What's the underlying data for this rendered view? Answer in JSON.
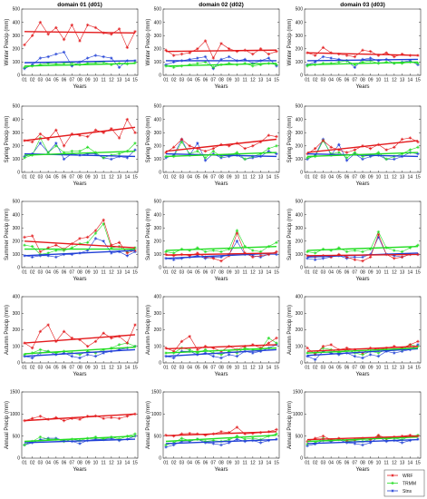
{
  "chart_data": {
    "type": "line",
    "columns": [
      "domain 01 (d01)",
      "domain 02 (d02)",
      "domain 03 (d03)"
    ],
    "rows": [
      {
        "ylabel": "Winter Precip (mm)",
        "ymax": 500,
        "yticks": [
          0,
          100,
          200,
          300,
          400,
          500
        ]
      },
      {
        "ylabel": "Spring Precip (mm)",
        "ymax": 500,
        "yticks": [
          0,
          100,
          200,
          300,
          400,
          500
        ]
      },
      {
        "ylabel": "Summer Precip (mm)",
        "ymax": 500,
        "yticks": [
          0,
          100,
          200,
          300,
          400,
          500
        ]
      },
      {
        "ylabel": "Autumn Precip (mm)",
        "ymax": 400,
        "yticks": [
          0,
          100,
          200,
          300,
          400
        ]
      },
      {
        "ylabel": "Annual Precip (mm)",
        "ymax": 1500,
        "yticks": [
          0,
          500,
          1000,
          1500
        ]
      }
    ],
    "xlabel": "Years",
    "x": [
      "01",
      "02",
      "03",
      "04",
      "05",
      "06",
      "07",
      "08",
      "09",
      "10",
      "11",
      "12",
      "13",
      "14",
      "15"
    ],
    "legend": [
      {
        "name": "WRF",
        "color": "#e31a1c",
        "marker": "*"
      },
      {
        "name": "TRMM",
        "color": "#22dd22",
        "marker": "*"
      },
      {
        "name": "Stns",
        "color": "#1f3fd6",
        "marker": "*"
      }
    ],
    "legend_position": "bottom-right",
    "panels": [
      {
        "row": 0,
        "col": 0,
        "WRF": [
          230,
          300,
          400,
          310,
          360,
          270,
          380,
          260,
          380,
          360,
          320,
          310,
          350,
          210,
          330
        ],
        "TRMM": [
          60,
          70,
          80,
          90,
          85,
          90,
          95,
          80,
          90,
          95,
          100,
          80,
          90,
          85,
          95
        ],
        "Stns": [
          50,
          80,
          130,
          140,
          160,
          175,
          70,
          100,
          130,
          150,
          140,
          130,
          60,
          110,
          110
        ],
        "trend": {
          "WRF": [
            330,
            320
          ],
          "TRMM": [
            70,
            90
          ],
          "Stns": [
            95,
            110
          ]
        }
      },
      {
        "row": 0,
        "col": 1,
        "WRF": [
          190,
          150,
          160,
          170,
          200,
          260,
          130,
          240,
          200,
          180,
          190,
          160,
          200,
          160,
          180
        ],
        "TRMM": [
          70,
          60,
          70,
          80,
          90,
          100,
          60,
          80,
          90,
          80,
          90,
          70,
          80,
          90,
          80
        ],
        "Stns": [
          80,
          100,
          110,
          120,
          130,
          140,
          50,
          120,
          140,
          110,
          120,
          90,
          110,
          130,
          70
        ],
        "trend": {
          "WRF": [
            180,
            190
          ],
          "TRMM": [
            70,
            90
          ],
          "Stns": [
            110,
            110
          ]
        }
      },
      {
        "row": 0,
        "col": 2,
        "WRF": [
          170,
          150,
          210,
          170,
          160,
          150,
          140,
          190,
          180,
          150,
          170,
          140,
          160,
          150,
          150
        ],
        "TRMM": [
          70,
          80,
          90,
          90,
          100,
          110,
          80,
          100,
          110,
          90,
          100,
          90,
          90,
          100,
          90
        ],
        "Stns": [
          80,
          100,
          140,
          130,
          120,
          110,
          60,
          120,
          130,
          110,
          120,
          90,
          100,
          110,
          80
        ],
        "trend": {
          "WRF": [
            170,
            150
          ],
          "TRMM": [
            80,
            100
          ],
          "Stns": [
            110,
            120
          ]
        }
      },
      {
        "row": 1,
        "col": 0,
        "WRF": [
          240,
          230,
          290,
          250,
          320,
          200,
          290,
          280,
          270,
          320,
          300,
          330,
          260,
          400,
          300
        ],
        "TRMM": [
          110,
          130,
          260,
          150,
          200,
          150,
          160,
          160,
          190,
          150,
          110,
          130,
          140,
          160,
          220
        ],
        "Stns": [
          120,
          140,
          220,
          150,
          220,
          100,
          140,
          130,
          140,
          140,
          110,
          100,
          120,
          110,
          170
        ],
        "trend": {
          "WRF": [
            240,
            340
          ],
          "TRMM": [
            130,
            160
          ],
          "Stns": [
            140,
            120
          ]
        }
      },
      {
        "row": 1,
        "col": 1,
        "WRF": [
          150,
          190,
          250,
          200,
          180,
          160,
          180,
          210,
          200,
          220,
          180,
          200,
          230,
          280,
          270
        ],
        "TRMM": [
          120,
          120,
          230,
          140,
          160,
          110,
          160,
          120,
          130,
          150,
          100,
          120,
          140,
          180,
          200
        ],
        "Stns": [
          110,
          130,
          250,
          130,
          220,
          90,
          140,
          110,
          120,
          130,
          100,
          110,
          120,
          160,
          140
        ],
        "trend": {
          "WRF": [
            160,
            250
          ],
          "TRMM": [
            120,
            150
          ],
          "Stns": [
            140,
            120
          ]
        }
      },
      {
        "row": 1,
        "col": 2,
        "WRF": [
          140,
          180,
          240,
          190,
          170,
          150,
          170,
          200,
          180,
          210,
          170,
          190,
          250,
          260,
          230
        ],
        "TRMM": [
          110,
          120,
          240,
          140,
          150,
          110,
          150,
          120,
          130,
          150,
          100,
          120,
          140,
          170,
          190
        ],
        "Stns": [
          100,
          130,
          250,
          130,
          210,
          90,
          140,
          100,
          120,
          130,
          100,
          100,
          120,
          150,
          140
        ],
        "trend": {
          "WRF": [
            150,
            240
          ],
          "TRMM": [
            120,
            150
          ],
          "Stns": [
            140,
            120
          ]
        }
      },
      {
        "row": 2,
        "col": 0,
        "WRF": [
          230,
          240,
          120,
          150,
          170,
          140,
          180,
          220,
          230,
          280,
          360,
          170,
          190,
          110,
          130
        ],
        "TRMM": [
          170,
          160,
          100,
          110,
          130,
          130,
          150,
          180,
          190,
          260,
          330,
          150,
          160,
          120,
          150
        ],
        "Stns": [
          90,
          80,
          90,
          90,
          80,
          100,
          100,
          110,
          130,
          220,
          200,
          110,
          120,
          90,
          120
        ],
        "trend": {
          "WRF": [
            200,
            150
          ],
          "TRMM": [
            140,
            140
          ],
          "Stns": [
            90,
            130
          ]
        }
      },
      {
        "row": 2,
        "col": 1,
        "WRF": [
          100,
          90,
          100,
          90,
          110,
          80,
          70,
          50,
          90,
          260,
          110,
          80,
          90,
          100,
          120
        ],
        "TRMM": [
          120,
          110,
          140,
          130,
          150,
          120,
          130,
          120,
          140,
          280,
          160,
          130,
          120,
          160,
          190
        ],
        "Stns": [
          70,
          60,
          70,
          80,
          90,
          70,
          80,
          80,
          100,
          200,
          100,
          90,
          80,
          100,
          100
        ],
        "trend": {
          "WRF": [
            95,
            110
          ],
          "TRMM": [
            130,
            160
          ],
          "Stns": [
            70,
            110
          ]
        }
      },
      {
        "row": 2,
        "col": 2,
        "WRF": [
          90,
          80,
          90,
          80,
          100,
          80,
          60,
          50,
          80,
          250,
          100,
          70,
          80,
          100,
          100
        ],
        "TRMM": [
          120,
          110,
          140,
          130,
          150,
          120,
          130,
          120,
          140,
          270,
          150,
          130,
          120,
          150,
          170
        ],
        "Stns": [
          70,
          60,
          70,
          80,
          90,
          70,
          80,
          80,
          100,
          230,
          100,
          90,
          80,
          100,
          100
        ],
        "trend": {
          "WRF": [
            90,
            100
          ],
          "TRMM": [
            130,
            160
          ],
          "Stns": [
            80,
            110
          ]
        }
      },
      {
        "row": 3,
        "col": 0,
        "WRF": [
          120,
          90,
          190,
          230,
          130,
          190,
          150,
          140,
          100,
          130,
          180,
          150,
          160,
          120,
          230
        ],
        "TRMM": [
          50,
          60,
          80,
          70,
          60,
          70,
          60,
          50,
          70,
          60,
          80,
          90,
          110,
          120,
          100
        ],
        "Stns": [
          40,
          30,
          60,
          70,
          50,
          60,
          40,
          30,
          50,
          40,
          60,
          70,
          80,
          90,
          100
        ],
        "trend": {
          "WRF": [
            120,
            170
          ],
          "TRMM": [
            55,
            95
          ],
          "Stns": [
            40,
            80
          ]
        }
      },
      {
        "row": 3,
        "col": 1,
        "WRF": [
          90,
          70,
          130,
          160,
          80,
          100,
          90,
          70,
          100,
          80,
          100,
          110,
          90,
          120,
          150
        ],
        "TRMM": [
          60,
          60,
          90,
          80,
          60,
          80,
          60,
          50,
          70,
          60,
          90,
          80,
          80,
          150,
          120
        ],
        "Stns": [
          40,
          30,
          70,
          70,
          50,
          60,
          40,
          30,
          50,
          40,
          70,
          60,
          70,
          90,
          110
        ],
        "trend": {
          "WRF": [
            85,
            110
          ],
          "TRMM": [
            60,
            90
          ],
          "Stns": [
            40,
            80
          ]
        }
      },
      {
        "row": 3,
        "col": 2,
        "WRF": [
          90,
          50,
          100,
          110,
          80,
          90,
          80,
          60,
          90,
          80,
          90,
          100,
          90,
          110,
          130
        ],
        "TRMM": [
          60,
          60,
          90,
          80,
          60,
          80,
          60,
          50,
          70,
          60,
          80,
          80,
          80,
          110,
          100
        ],
        "Stns": [
          40,
          20,
          70,
          60,
          50,
          60,
          40,
          30,
          50,
          40,
          70,
          60,
          70,
          80,
          110
        ],
        "trend": {
          "WRF": [
            70,
            100
          ],
          "TRMM": [
            60,
            90
          ],
          "Stns": [
            45,
            85
          ]
        }
      },
      {
        "row": 4,
        "col": 0,
        "WRF": [
          850,
          900,
          950,
          880,
          920,
          850,
          900,
          880,
          950,
          960,
          900,
          920,
          900,
          950,
          1000
        ],
        "TRMM": [
          300,
          380,
          480,
          430,
          430,
          380,
          430,
          400,
          450,
          480,
          430,
          480,
          430,
          500,
          550
        ],
        "Stns": [
          300,
          350,
          420,
          450,
          450,
          400,
          380,
          330,
          400,
          430,
          420,
          450,
          400,
          430,
          500
        ],
        "trend": {
          "WRF": [
            850,
            1000
          ],
          "TRMM": [
            380,
            500
          ],
          "Stns": [
            350,
            430
          ]
        }
      },
      {
        "row": 4,
        "col": 1,
        "WRF": [
          520,
          500,
          550,
          560,
          550,
          520,
          550,
          600,
          580,
          700,
          550,
          560,
          580,
          600,
          650
        ],
        "TRMM": [
          300,
          350,
          450,
          400,
          430,
          380,
          400,
          380,
          420,
          500,
          430,
          450,
          420,
          500,
          550
        ],
        "Stns": [
          250,
          300,
          380,
          380,
          430,
          350,
          330,
          300,
          350,
          430,
          380,
          400,
          350,
          400,
          430
        ],
        "trend": {
          "WRF": [
            510,
            600
          ],
          "TRMM": [
            380,
            520
          ],
          "Stns": [
            330,
            420
          ]
        }
      },
      {
        "row": 4,
        "col": 2,
        "WRF": [
          380,
          450,
          500,
          420,
          450,
          400,
          420,
          450,
          420,
          520,
          450,
          480,
          500,
          520,
          500
        ],
        "TRMM": [
          320,
          350,
          450,
          400,
          430,
          380,
          400,
          380,
          420,
          500,
          430,
          450,
          420,
          500,
          520
        ],
        "Stns": [
          280,
          320,
          400,
          380,
          420,
          350,
          330,
          300,
          350,
          480,
          380,
          400,
          350,
          400,
          430
        ],
        "trend": {
          "WRF": [
            420,
            500
          ],
          "TRMM": [
            380,
            480
          ],
          "Stns": [
            330,
            420
          ]
        }
      }
    ]
  }
}
